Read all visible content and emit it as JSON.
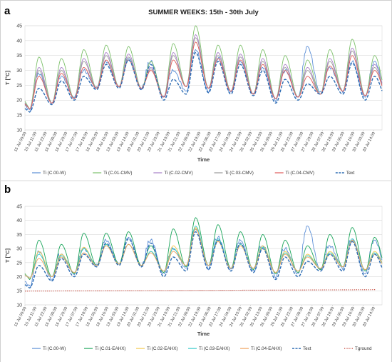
{
  "chart_data": [
    {
      "type": "line",
      "panel_label": "a",
      "title": "SUMMER WEEKS: 15th - 30th July",
      "xlabel": "Time",
      "ylabel": "T [°C]",
      "ylim": [
        10,
        45
      ],
      "yticks": [
        10,
        15,
        20,
        25,
        30,
        35,
        40,
        45
      ],
      "grid": true,
      "legend_position": "bottom",
      "x": [
        "15 Jul 00:00",
        "15 Jul 11:00",
        "15 Jul 22:00",
        "16 Jul 09:00",
        "16 Jul 20:00",
        "17 Jul 07:00",
        "17 Jul 18:00",
        "18 Jul 05:00",
        "18 Jul 16:00",
        "19 Jul 03:00",
        "19 Jul 14:00",
        "20 Jul 01:00",
        "20 Jul 12:00",
        "20 Jul 23:00",
        "21 Jul 10:00",
        "21 Jul 21:00",
        "22 Jul 08:00",
        "22 Jul 19:00",
        "23 Jul 06:00",
        "23 Jul 17:00",
        "24 Jul 04:00",
        "24 Jul 15:00",
        "25 Jul 02:00",
        "25 Jul 13:00",
        "26 Jul 00:00",
        "26 Jul 11:00",
        "26 Jul 22:00",
        "27 Jul 09:00",
        "27 Jul 20:00",
        "28 Jul 07:00",
        "28 Jul 18:00",
        "29 Jul 05:00",
        "29 Jul 16:00",
        "30 Jul 03:00",
        "30 Jul 14:00"
      ],
      "day_min_text": [
        16,
        18.5,
        20,
        23.5,
        24,
        23.5,
        20,
        22,
        22.5,
        22,
        21.5,
        19,
        20,
        22,
        22,
        20
      ],
      "day_max_text": [
        24,
        26.5,
        28,
        32,
        33.5,
        32,
        27,
        36,
        33,
        32,
        30,
        27,
        25.5,
        28,
        32.5,
        28
      ],
      "series": [
        {
          "name": "Ti (C.00-W)",
          "color": "#5b8ed6",
          "style": "solid",
          "day_min": [
            16.5,
            19,
            21,
            24,
            24.5,
            24,
            21,
            23,
            23,
            22.5,
            22,
            20,
            21,
            22.5,
            23,
            21
          ],
          "day_max": [
            29,
            28,
            30,
            33,
            34,
            33,
            30,
            37,
            34,
            33,
            31,
            30,
            38,
            31,
            33,
            33
          ]
        },
        {
          "name": "Ti (C.01-CMV)",
          "color": "#7cc06a",
          "style": "solid",
          "day_min": [
            17,
            19,
            20.5,
            24,
            24.5,
            24,
            21,
            24.5,
            24,
            23,
            22,
            20.5,
            21,
            22,
            23,
            21.5
          ],
          "day_max": [
            34.5,
            34,
            37,
            38.5,
            38,
            33,
            39,
            45,
            38.5,
            38.5,
            37,
            35,
            33.5,
            37,
            40.5,
            35
          ]
        },
        {
          "name": "Ti (C.02-CMV)",
          "color": "#a77fc7",
          "style": "solid",
          "day_min": [
            17,
            19,
            20.5,
            24,
            24.5,
            24,
            21,
            24.5,
            24,
            23,
            22,
            20.5,
            21,
            22,
            23,
            21.5
          ],
          "day_max": [
            31,
            31,
            34,
            36,
            35.5,
            31,
            36,
            42,
            36,
            35.5,
            34,
            32,
            31,
            34,
            37.5,
            32
          ]
        },
        {
          "name": "Ti (C.03-CMV)",
          "color": "#9a9a9a",
          "style": "solid",
          "day_min": [
            17,
            19,
            20.5,
            24,
            24.5,
            24,
            21,
            24.5,
            24,
            23,
            22,
            20.5,
            21,
            22,
            23,
            21.5
          ],
          "day_max": [
            30,
            30,
            33,
            35,
            34.5,
            30.5,
            35,
            41,
            35,
            34.5,
            33,
            31,
            30,
            33,
            36.5,
            31
          ]
        },
        {
          "name": "Ti (C.04-CMV)",
          "color": "#e05a5a",
          "style": "solid",
          "day_min": [
            17,
            19,
            20.5,
            24,
            24.5,
            24,
            21,
            24.5,
            24,
            23,
            22,
            20.5,
            21,
            22,
            23,
            21.5
          ],
          "day_max": [
            28,
            29,
            31,
            33.5,
            33.5,
            30,
            33.5,
            39.5,
            34,
            33.5,
            32,
            30,
            28,
            31.5,
            35,
            30
          ]
        },
        {
          "name": "Text",
          "color": "#2e6db4",
          "style": "dashed",
          "uses": "text"
        }
      ]
    },
    {
      "type": "line",
      "panel_label": "b",
      "xlabel": "Time",
      "ylabel": "T [°C]",
      "ylim": [
        10,
        45
      ],
      "yticks": [
        10,
        15,
        20,
        25,
        30,
        35,
        40,
        45
      ],
      "grid": true,
      "legend_position": "bottom",
      "x": [
        "15 Jul 00:00",
        "15 Jul 11:00",
        "15 Jul 22:00",
        "16 Jul 09:00",
        "16 Jul 20:00",
        "17 Jul 07:00",
        "17 Jul 18:00",
        "18 Jul 05:00",
        "18 Jul 16:00",
        "19 Jul 03:00",
        "19 Jul 14:00",
        "20 Jul 01:00",
        "20 Jul 12:00",
        "20 Jul 23:00",
        "21 Jul 10:00",
        "21 Jul 21:00",
        "22 Jul 08:00",
        "22 Jul 19:00",
        "23 Jul 06:00",
        "23 Jul 17:00",
        "24 Jul 04:00",
        "24 Jul 15:00",
        "25 Jul 02:00",
        "25 Jul 13:00",
        "26 Jul 00:00",
        "26 Jul 11:00",
        "26 Jul 22:00",
        "27 Jul 09:00",
        "27 Jul 20:00",
        "28 Jul 07:00",
        "28 Jul 18:00",
        "29 Jul 05:00",
        "29 Jul 16:00",
        "30 Jul 03:00",
        "30 Jul 14:00"
      ],
      "day_min_text": [
        16,
        18.5,
        20,
        23.5,
        24,
        23.5,
        20,
        22,
        22.5,
        22,
        21.5,
        19,
        20,
        22,
        22,
        20
      ],
      "day_max_text": [
        24,
        26.5,
        28,
        32,
        33.5,
        32,
        27,
        36,
        33,
        32,
        30,
        27,
        25.5,
        28,
        32.5,
        28
      ],
      "series": [
        {
          "name": "Ti (C.00-W)",
          "color": "#5b8ed6",
          "style": "solid",
          "day_min": [
            16.5,
            19,
            21,
            24,
            24.5,
            24,
            21,
            23,
            23,
            22.5,
            22,
            20,
            21,
            22.5,
            23,
            21
          ],
          "day_max": [
            29,
            28,
            30,
            33,
            34,
            33,
            30,
            37,
            34,
            33,
            31,
            30,
            38,
            31,
            33,
            33
          ]
        },
        {
          "name": "Ti (C.01-EAHX)",
          "color": "#1aa55a",
          "style": "solid",
          "day_min": [
            19,
            20,
            21,
            24,
            24.5,
            24,
            21.5,
            23.5,
            24,
            23,
            22.5,
            21,
            21.5,
            22.5,
            23.5,
            22
          ],
          "day_max": [
            33,
            31.5,
            35.5,
            35.5,
            36,
            31,
            37,
            41,
            38.5,
            36,
            35,
            33,
            31,
            35,
            37.5,
            34
          ]
        },
        {
          "name": "Ti (C.02-EAHX)",
          "color": "#f2c84b",
          "style": "solid",
          "day_min": [
            19.5,
            20,
            21.5,
            24,
            24.5,
            24,
            22,
            24,
            24,
            23,
            23,
            21.5,
            22,
            23,
            23.5,
            22.5
          ],
          "day_max": [
            29,
            28,
            30.5,
            31.5,
            31.5,
            29,
            31,
            37.5,
            33,
            31.5,
            31,
            29,
            28,
            29,
            33,
            29
          ]
        },
        {
          "name": "Ti (C.03-EAHX)",
          "color": "#2ec8c8",
          "style": "solid",
          "day_min": [
            19.5,
            20,
            21.5,
            24,
            24.5,
            24,
            22,
            24,
            24,
            23,
            23,
            21.5,
            22,
            23,
            23.5,
            22.5
          ],
          "day_max": [
            28,
            27.5,
            30,
            31.5,
            31.5,
            29,
            30,
            38,
            33.5,
            31.5,
            30.5,
            28.5,
            27.5,
            28.5,
            33.5,
            28.5
          ]
        },
        {
          "name": "Ti (C.04-EAHX)",
          "color": "#f0a05a",
          "style": "solid",
          "day_min": [
            19.5,
            20,
            21.5,
            24,
            24.5,
            24,
            22,
            24,
            24,
            23,
            23,
            21.5,
            22,
            23,
            23.5,
            22.5
          ],
          "day_max": [
            26.5,
            27,
            28.5,
            31,
            31.5,
            28.5,
            29,
            37,
            32.5,
            31,
            30,
            28,
            27,
            28,
            33,
            28
          ]
        },
        {
          "name": "Text",
          "color": "#2e6db4",
          "style": "dashed",
          "uses": "text"
        },
        {
          "name": "Tground",
          "color": "#c0392b",
          "style": "dotted",
          "start": 14.9,
          "end": 15.4
        }
      ]
    }
  ]
}
